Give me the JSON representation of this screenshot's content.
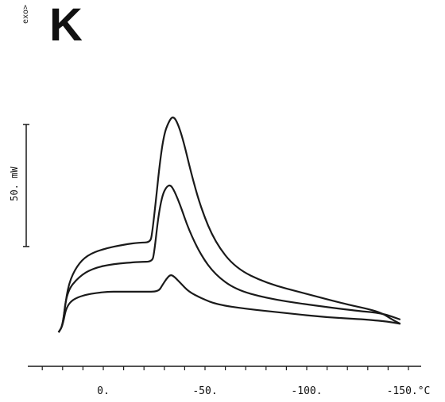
{
  "panel": {
    "letter": "K",
    "exo_label": "exo>"
  },
  "chart_data": {
    "type": "line",
    "title": "",
    "xlabel": "°C",
    "ylabel": "",
    "xlim": [
      25,
      -160
    ],
    "x_ticks": [
      {
        "value": 0,
        "label": "0."
      },
      {
        "value": -50,
        "label": "-50."
      },
      {
        "value": -100,
        "label": "-100."
      },
      {
        "value": -150,
        "label": "-150.°C"
      }
    ],
    "scale_bar": {
      "label": "50. mW",
      "value_mW": 50
    },
    "ylim_mW": [
      0,
      100
    ],
    "series": [
      {
        "x": [
          22,
          20,
          19,
          17,
          13,
          8,
          0,
          -10,
          -18,
          -23,
          -24,
          -26,
          -28,
          -30,
          -32,
          -34,
          -36,
          -39,
          -43,
          -48,
          -55,
          -65,
          -80,
          -100,
          -120,
          -130,
          -137,
          -142,
          -146
        ],
        "y": [
          4,
          7,
          15,
          27,
          35,
          40,
          43,
          45,
          46,
          46,
          50,
          67,
          85,
          97,
          102,
          105,
          103,
          95,
          79,
          62,
          46,
          34,
          27,
          22,
          17,
          15,
          13,
          10,
          8
        ]
      },
      {
        "x": [
          22,
          20,
          18,
          12,
          5,
          -5,
          -18,
          -24,
          -25,
          -27,
          -29,
          -31,
          -33,
          -35,
          -38,
          -42,
          -48,
          -55,
          -65,
          -80,
          -100,
          -125,
          -137,
          -146
        ],
        "y": [
          4,
          7,
          23,
          30,
          34,
          36,
          37,
          37,
          41,
          58,
          68,
          72,
          73,
          70,
          63,
          52,
          40,
          31,
          24,
          20,
          17,
          14,
          13,
          10
        ]
      },
      {
        "x": [
          22,
          20,
          18,
          12,
          0,
          -10,
          -20,
          -27,
          -29,
          -31,
          -33,
          -35,
          -38,
          -42,
          -48,
          -56,
          -70,
          -90,
          -110,
          -130,
          -140,
          -146
        ],
        "y": [
          4,
          7,
          17,
          21,
          23,
          23,
          23,
          23,
          26,
          29,
          31,
          30,
          27,
          23,
          20,
          17,
          15,
          13,
          11,
          10,
          9,
          8
        ]
      }
    ],
    "colors": {
      "line": "#1a1a1a",
      "axis": "#1a1a1a"
    }
  }
}
